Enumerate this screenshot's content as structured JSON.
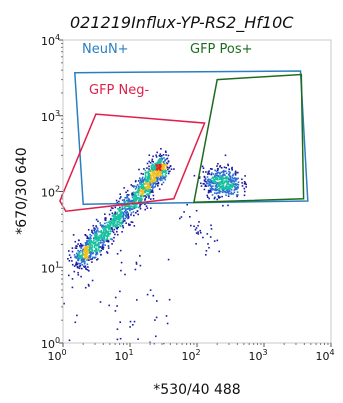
{
  "chart_data": {
    "type": "scatter",
    "title": "021219Influx-YP-RS2_Hf10C",
    "xlabel": "*530/40 488",
    "ylabel": "*670/30 640",
    "xscale": "log",
    "yscale": "log",
    "xlim": [
      1,
      10000
    ],
    "ylim": [
      1,
      10000
    ],
    "x_ticks": [
      {
        "base": "10",
        "exp": "0"
      },
      {
        "base": "10",
        "exp": "1"
      },
      {
        "base": "10",
        "exp": "2"
      },
      {
        "base": "10",
        "exp": "3"
      },
      {
        "base": "10",
        "exp": "4"
      }
    ],
    "y_ticks": [
      {
        "base": "10",
        "exp": "0"
      },
      {
        "base": "10",
        "exp": "1"
      },
      {
        "base": "10",
        "exp": "2"
      },
      {
        "base": "10",
        "exp": "3"
      },
      {
        "base": "10",
        "exp": "4"
      }
    ],
    "colors": {
      "density_low": "#1a1aa6",
      "density_mid": "#18c0a0",
      "density_high": "#e02020"
    },
    "gates": [
      {
        "name": "NeuN+",
        "color": "#2a7fbf",
        "polygon": [
          [
            1.5,
            3700
          ],
          [
            3500,
            3900
          ],
          [
            4500,
            75
          ],
          [
            2,
            68
          ]
        ]
      },
      {
        "name": "GFP Pos+",
        "color": "#1e6b1e",
        "polygon": [
          [
            200,
            3000
          ],
          [
            3600,
            3500
          ],
          [
            3900,
            80
          ],
          [
            90,
            72
          ]
        ]
      },
      {
        "name": "GFP Neg-",
        "color": "#e0204a",
        "polygon": [
          [
            3.1,
            1050
          ],
          [
            130,
            800
          ],
          [
            45,
            80
          ],
          [
            1.1,
            55
          ],
          [
            0.9,
            75
          ]
        ]
      }
    ],
    "populations": [
      {
        "name": "main",
        "points": [
          [
            1.6,
            12
          ],
          [
            2.5,
            18
          ],
          [
            4,
            28
          ],
          [
            7,
            48
          ],
          [
            12,
            85
          ],
          [
            18,
            130
          ],
          [
            25,
            190
          ],
          [
            30,
            240
          ]
        ],
        "n": 1500
      },
      {
        "name": "GFP Pos+",
        "center": [
          230,
          135
        ],
        "spread": [
          0.14,
          0.1
        ],
        "n": 420
      },
      {
        "name": "tail",
        "points": [
          [
            60,
            55
          ],
          [
            110,
            28
          ],
          [
            190,
            18
          ]
        ],
        "n": 30
      }
    ]
  }
}
